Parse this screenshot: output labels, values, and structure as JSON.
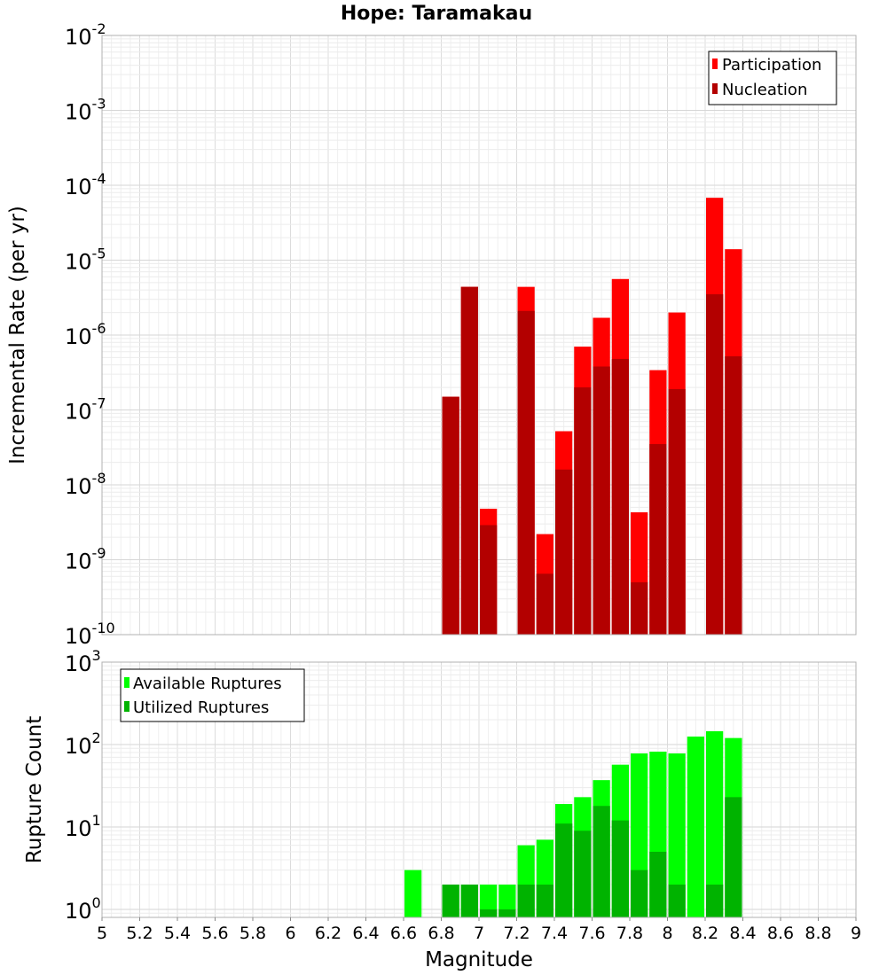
{
  "chart_data": [
    {
      "type": "bar",
      "title": "Hope: Taramakau",
      "ylabel": "Incremental Rate (per yr)",
      "xlabel": "",
      "xlim": [
        5,
        9
      ],
      "ylim": [
        1e-10,
        0.01
      ],
      "yscale": "log",
      "grid": true,
      "legend_placement": "top-right",
      "bar_width": 0.1,
      "y_tick_labels": [
        {
          "base": "10",
          "exp": "-10"
        },
        {
          "base": "10",
          "exp": "-9"
        },
        {
          "base": "10",
          "exp": "-8"
        },
        {
          "base": "10",
          "exp": "-7"
        },
        {
          "base": "10",
          "exp": "-6"
        },
        {
          "base": "10",
          "exp": "-5"
        },
        {
          "base": "10",
          "exp": "-4"
        },
        {
          "base": "10",
          "exp": "-3"
        },
        {
          "base": "10",
          "exp": "-2"
        }
      ],
      "series": [
        {
          "name": "Participation",
          "color": "#ff0000",
          "x": [
            6.85,
            6.95,
            7.05,
            7.25,
            7.35,
            7.45,
            7.55,
            7.65,
            7.75,
            7.85,
            7.95,
            8.05,
            8.25,
            8.35
          ],
          "values": [
            1.5e-07,
            4.4e-06,
            4.8e-09,
            4.4e-06,
            2.2e-09,
            5.2e-08,
            7e-07,
            1.7e-06,
            5.6e-06,
            4.3e-09,
            3.4e-07,
            2e-06,
            6.8e-05,
            1.4e-05
          ]
        },
        {
          "name": "Nucleation",
          "color": "#b30000",
          "x": [
            6.85,
            6.95,
            7.05,
            7.25,
            7.35,
            7.45,
            7.55,
            7.65,
            7.75,
            7.85,
            7.95,
            8.05,
            8.25,
            8.35
          ],
          "values": [
            1.5e-07,
            4.4e-06,
            2.9e-09,
            2.1e-06,
            6.5e-10,
            1.6e-08,
            2e-07,
            3.8e-07,
            4.8e-07,
            5e-10,
            3.5e-08,
            1.9e-07,
            3.5e-06,
            5.2e-07
          ]
        }
      ]
    },
    {
      "type": "bar",
      "title": "",
      "ylabel": "Rupture Count",
      "xlabel": "Magnitude",
      "xlim": [
        5,
        9
      ],
      "ylim": [
        0.8,
        1000
      ],
      "yscale": "log",
      "grid": true,
      "legend_placement": "top-left",
      "bar_width": 0.1,
      "x_ticks": [
        "5",
        "5.2",
        "5.4",
        "5.6",
        "5.8",
        "6",
        "6.2",
        "6.4",
        "6.6",
        "6.8",
        "7",
        "7.2",
        "7.4",
        "7.6",
        "7.8",
        "8",
        "8.2",
        "8.4",
        "8.6",
        "8.8",
        "9"
      ],
      "y_tick_labels": [
        {
          "base": "10",
          "exp": "0"
        },
        {
          "base": "10",
          "exp": "1"
        },
        {
          "base": "10",
          "exp": "2"
        },
        {
          "base": "10",
          "exp": "3"
        }
      ],
      "series": [
        {
          "name": "Available Ruptures",
          "color": "#00ff00",
          "x": [
            6.65,
            6.85,
            6.95,
            7.05,
            7.15,
            7.25,
            7.35,
            7.45,
            7.55,
            7.65,
            7.75,
            7.85,
            7.95,
            8.05,
            8.15,
            8.25,
            8.35
          ],
          "values": [
            3,
            2,
            2,
            2,
            2,
            6,
            7,
            19,
            23,
            37,
            57,
            78,
            82,
            78,
            125,
            145,
            120
          ]
        },
        {
          "name": "Utilized Ruptures",
          "color": "#00b300",
          "x": [
            6.65,
            6.85,
            6.95,
            7.05,
            7.15,
            7.25,
            7.35,
            7.45,
            7.55,
            7.65,
            7.75,
            7.85,
            7.95,
            8.05,
            8.15,
            8.25,
            8.35
          ],
          "values": [
            0,
            2,
            2,
            1,
            1,
            2,
            2,
            11,
            9,
            18,
            12,
            3,
            5,
            2,
            0,
            2,
            23
          ]
        }
      ]
    }
  ]
}
